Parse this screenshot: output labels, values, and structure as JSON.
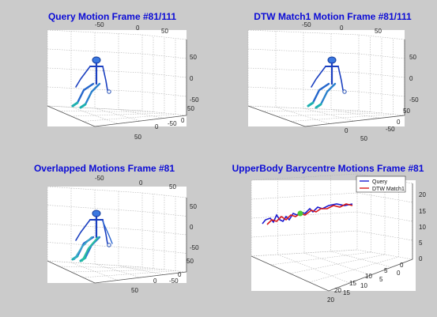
{
  "chart_data": [
    {
      "type": "3d-line",
      "title": "Query Motion    Frame #81/111",
      "ticks": {
        "top": [
          "-50",
          "0",
          "50"
        ],
        "right": [
          "50",
          "0",
          "-50"
        ],
        "depth": [
          "50",
          "0",
          "-50"
        ],
        "bottom": [
          "50",
          "0"
        ]
      },
      "figure_color": "#1a55c8"
    },
    {
      "type": "3d-line",
      "title": "DTW Match1 Motion    Frame #81/111",
      "ticks": {
        "top": [
          "-50",
          "0",
          "50"
        ],
        "right": [
          "50",
          "0",
          "-50"
        ],
        "depth": [
          "50",
          "0",
          "-50"
        ],
        "bottom": [
          "50",
          "0"
        ]
      },
      "figure_color": "#1a55c8"
    },
    {
      "type": "3d-line",
      "title": "Overlapped Motions    Frame #81",
      "ticks": {
        "top": [
          "-50",
          "0",
          "50"
        ],
        "right": [
          "50",
          "0",
          "-50"
        ],
        "depth": [
          "50",
          "0",
          "-50"
        ],
        "bottom": [
          "50",
          "0"
        ]
      },
      "figure_color": "#1a55c8"
    },
    {
      "type": "3d-line",
      "title": "UpperBody Barycentre Motions    Frame #81",
      "ticks": {
        "top": [],
        "right": [
          "20",
          "15",
          "10",
          "5",
          "0"
        ],
        "depth": [
          "20",
          "15",
          "10",
          "5",
          "0"
        ],
        "bottom": [
          "20",
          "15",
          "10",
          "5",
          "0"
        ]
      },
      "legend": {
        "placement": "top-right",
        "entries": [
          "Query",
          "DTW Match1"
        ]
      },
      "series": [
        {
          "name": "Query",
          "color": "#1a1ad0"
        },
        {
          "name": "DTW Match1",
          "color": "#d81818"
        }
      ]
    }
  ]
}
